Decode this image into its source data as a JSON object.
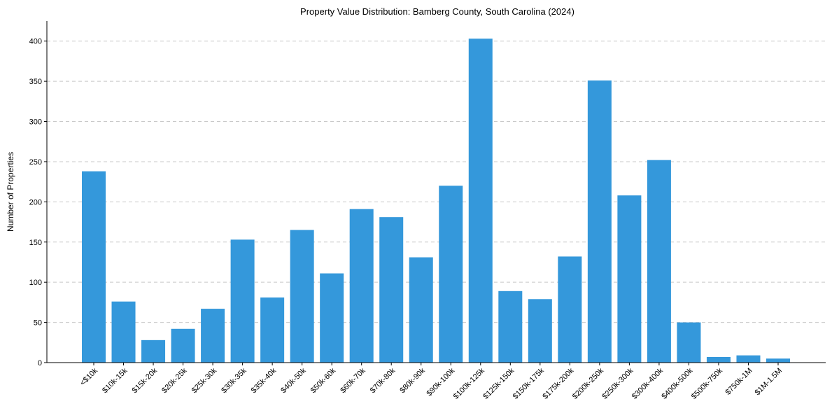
{
  "chart_data": {
    "type": "bar",
    "title": "Property Value Distribution: Bamberg County, South Carolina (2024)",
    "xlabel": "",
    "ylabel": "Number of Properties",
    "ylim": [
      0,
      425
    ],
    "yticks": [
      0,
      50,
      100,
      150,
      200,
      250,
      300,
      350,
      400
    ],
    "grid": "y-dashed",
    "bar_color": "#3498db",
    "categories": [
      "<$10k",
      "$10k-15k",
      "$15k-20k",
      "$20k-25k",
      "$25k-30k",
      "$30k-35k",
      "$35k-40k",
      "$40k-50k",
      "$50k-60k",
      "$60k-70k",
      "$70k-80k",
      "$80k-90k",
      "$90k-100k",
      "$100k-125k",
      "$125k-150k",
      "$150k-175k",
      "$175k-200k",
      "$200k-250k",
      "$250k-300k",
      "$300k-400k",
      "$400k-500k",
      "$500k-750k",
      "$750k-1M",
      "$1M-1.5M"
    ],
    "values": [
      238,
      76,
      28,
      42,
      67,
      153,
      81,
      165,
      111,
      191,
      181,
      131,
      220,
      403,
      89,
      79,
      132,
      351,
      208,
      252,
      50,
      7,
      9,
      5
    ]
  }
}
